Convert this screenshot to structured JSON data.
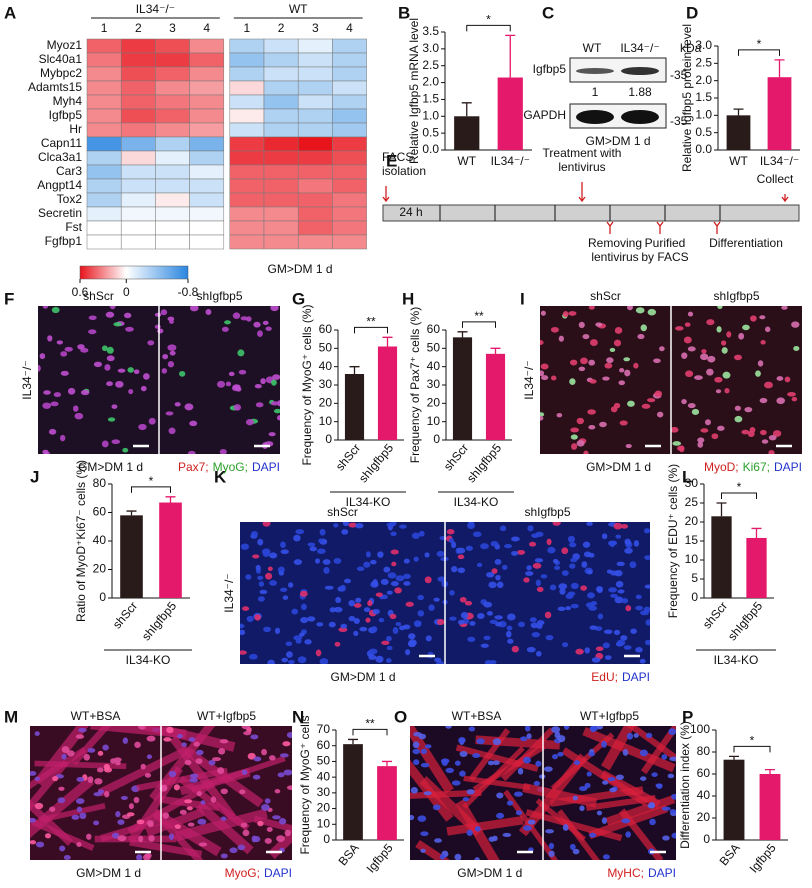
{
  "panel_letters": [
    "A",
    "B",
    "C",
    "D",
    "E",
    "F",
    "G",
    "H",
    "I",
    "J",
    "K",
    "L",
    "M",
    "N",
    "O",
    "P"
  ],
  "heatmap": {
    "groups": [
      "IL34⁻/⁻",
      "WT"
    ],
    "columns": [
      1,
      2,
      3,
      4,
      1,
      2,
      3,
      4
    ],
    "genes": [
      "Myoz1",
      "Slc40a1",
      "Mybpc2",
      "Adamts15",
      "Myh4",
      "Igfbp5",
      "Hr",
      "Capn11",
      "Clca3a1",
      "Car3",
      "Angpt14",
      "Tox2",
      "Secretin",
      "Fst",
      "Fgfbp1"
    ],
    "highlight_index": 5,
    "highlight_color": "#d0201f",
    "values": [
      [
        0.4,
        0.5,
        0.45,
        0.3,
        -0.3,
        -0.2,
        -0.1,
        -0.3
      ],
      [
        0.35,
        0.5,
        0.5,
        0.4,
        -0.4,
        -0.3,
        -0.2,
        -0.3
      ],
      [
        0.3,
        0.45,
        0.4,
        0.3,
        -0.3,
        -0.2,
        -0.2,
        -0.3
      ],
      [
        0.3,
        0.4,
        0.3,
        0.25,
        0.1,
        -0.3,
        -0.3,
        -0.2
      ],
      [
        0.3,
        0.4,
        0.35,
        0.3,
        -0.2,
        -0.4,
        -0.2,
        -0.3
      ],
      [
        0.3,
        0.45,
        0.4,
        0.3,
        0.05,
        -0.3,
        -0.3,
        -0.4
      ],
      [
        0.3,
        0.35,
        0.3,
        0.25,
        -0.2,
        -0.3,
        -0.3,
        -0.35
      ],
      [
        -0.7,
        -0.5,
        -0.3,
        -0.5,
        0.5,
        0.55,
        0.6,
        0.5
      ],
      [
        -0.3,
        0.1,
        -0.1,
        -0.3,
        0.5,
        0.5,
        0.5,
        0.45
      ],
      [
        -0.4,
        -0.2,
        -0.2,
        -0.1,
        0.4,
        0.4,
        0.4,
        0.4
      ],
      [
        -0.3,
        -0.2,
        -0.2,
        -0.2,
        0.4,
        0.4,
        0.35,
        0.4
      ],
      [
        -0.3,
        -0.1,
        0.05,
        -0.2,
        0.4,
        0.4,
        0.4,
        0.35
      ],
      [
        -0.1,
        -0.05,
        -0.05,
        -0.05,
        0.3,
        0.3,
        0.4,
        0.35
      ],
      [
        0,
        0,
        0,
        0,
        0.3,
        0.3,
        0.4,
        0.35
      ],
      [
        0,
        0,
        0,
        0,
        0.3,
        0.3,
        0.3,
        0.3
      ]
    ],
    "scale": {
      "min": -0.8,
      "max": 0.6,
      "ticks": [
        0.6,
        0,
        -0.8
      ]
    },
    "high_color": "#e8141c",
    "low_color": "#2a86e0",
    "condition": "GM>DM 1 d"
  },
  "blot": {
    "lanes": [
      "WT",
      "IL34⁻/⁻"
    ],
    "unit": "kDa",
    "rows": [
      {
        "label": "Igfbp5",
        "marker": "-35"
      },
      {
        "label": "GAPDH",
        "marker": "-35"
      }
    ],
    "quantification": [
      1,
      1.88
    ],
    "condition": "GM>DM 1 d"
  },
  "timeline": {
    "top_labels": [
      [
        "FACS",
        "isolation"
      ],
      [
        "Treatment with",
        "lentivirus"
      ],
      [
        "Collect"
      ]
    ],
    "bar_label": "24 h",
    "bottom_labels": [
      [
        "Removing",
        "lentivirus"
      ],
      [
        "Purified",
        "by FACS"
      ],
      [
        "Differentiation"
      ]
    ],
    "arrow_color": "#d0201f"
  },
  "images": [
    {
      "columns": [
        "shScr",
        "shIgfbp5"
      ],
      "row_label": "IL34⁻/⁻",
      "condition": "GM>DM 1 d",
      "stains": [
        {
          "text": "Pax7;",
          "color": "#d0201f"
        },
        {
          "text": "MyoG;",
          "color": "#2ca02c"
        },
        {
          "text": "DAPI",
          "color": "#2233cc"
        }
      ]
    },
    {
      "columns": [
        "shScr",
        "shIgfbp5"
      ],
      "row_label": "IL34⁻/⁻",
      "condition": "GM>DM 1 d",
      "stains": [
        {
          "text": "MyoD;",
          "color": "#d0201f"
        },
        {
          "text": "Ki67;",
          "color": "#2ca02c"
        },
        {
          "text": "DAPI",
          "color": "#2233cc"
        }
      ]
    },
    {
      "columns": [
        "shScr",
        "shIgfbp5"
      ],
      "row_label": "IL34⁻/⁻",
      "condition": "GM>DM 1 d",
      "stains": [
        {
          "text": "EdU;",
          "color": "#d0201f"
        },
        {
          "text": "DAPI",
          "color": "#2233cc"
        }
      ]
    },
    {
      "columns": [
        "WT+BSA",
        "WT+Igfbp5"
      ],
      "condition": "GM>DM 1 d",
      "stains": [
        {
          "text": "MyoG;",
          "color": "#d0201f"
        },
        {
          "text": "DAPI",
          "color": "#2233cc"
        }
      ]
    },
    {
      "columns": [
        "WT+BSA",
        "WT+Igfbp5"
      ],
      "condition": "GM>DM 1 d",
      "stains": [
        {
          "text": "MyHC;",
          "color": "#d0201f"
        },
        {
          "text": "DAPI",
          "color": "#2233cc"
        }
      ]
    }
  ],
  "chart_data": [
    {
      "type": "bar",
      "ylabel": "Relative Igfbp5 mRNA level",
      "categories": [
        "WT",
        "IL34⁻/⁻"
      ],
      "values": [
        1,
        2.15
      ],
      "errors": [
        0.4,
        1.25
      ],
      "colors": [
        "#2a1b1b",
        "#e5196b"
      ],
      "ylim": [
        0,
        3.5
      ],
      "yticks": [
        {
          "value": 0,
          "label": "0.0"
        },
        0.5,
        {
          "value": 1,
          "label": "1.0"
        },
        1.5,
        {
          "value": 2,
          "label": "2.0"
        },
        2.5,
        {
          "value": 3,
          "label": "3.0"
        },
        3.5
      ],
      "significance": "*"
    },
    {
      "type": "bar",
      "ylabel": "Relative Igfbp5 protein level",
      "categories": [
        "WT",
        "IL34⁻/⁻"
      ],
      "values": [
        1,
        2.1
      ],
      "errors": [
        0.18,
        0.5
      ],
      "colors": [
        "#2a1b1b",
        "#e5196b"
      ],
      "ylim": [
        0,
        3
      ],
      "yticks": [
        {
          "value": 0,
          "label": "0.0"
        },
        0.5,
        {
          "value": 1,
          "label": "1.0"
        },
        1.5,
        {
          "value": 2,
          "label": "2.0"
        },
        2.5,
        {
          "value": 3,
          "label": "3.0"
        }
      ],
      "significance": "*"
    },
    {
      "type": "bar",
      "ylabel": "Frequency of MyoG⁺ cells (%)",
      "categories": [
        "shScr",
        "shIgfbp5"
      ],
      "values": [
        36,
        51
      ],
      "errors": [
        4,
        5
      ],
      "colors": [
        "#2a1b1b",
        "#e5196b"
      ],
      "ylim": [
        0,
        60
      ],
      "yticks": [
        0,
        10,
        20,
        30,
        40,
        50,
        60
      ],
      "significance": "**",
      "group_label": "IL34-KO"
    },
    {
      "type": "bar",
      "ylabel": "Frequency of Pax7⁺ cells (%)",
      "categories": [
        "shScr",
        "shIgfbp5"
      ],
      "values": [
        56,
        47
      ],
      "errors": [
        3,
        3
      ],
      "colors": [
        "#2a1b1b",
        "#e5196b"
      ],
      "ylim": [
        0,
        60
      ],
      "yticks": [
        0,
        10,
        20,
        30,
        40,
        50,
        60
      ],
      "significance": "**",
      "group_label": "IL34-KO"
    },
    {
      "type": "bar",
      "ylabel": "Ratio of MyoD⁺Ki67⁻ cells (%)",
      "categories": [
        "shScr",
        "shIgfbp5"
      ],
      "values": [
        58,
        67
      ],
      "errors": [
        3,
        4
      ],
      "colors": [
        "#2a1b1b",
        "#e5196b"
      ],
      "ylim": [
        0,
        80
      ],
      "yticks": [
        0,
        20,
        40,
        60,
        80
      ],
      "significance": "*",
      "group_label": "IL34-KO"
    },
    {
      "type": "bar",
      "ylabel": "Frequency of EDU⁺ cells (%)",
      "categories": [
        "shScr",
        "shIgfbp5"
      ],
      "values": [
        21.5,
        15.8
      ],
      "errors": [
        3.5,
        2.5
      ],
      "colors": [
        "#2a1b1b",
        "#e5196b"
      ],
      "ylim": [
        0,
        30
      ],
      "yticks": [
        0,
        5,
        10,
        15,
        20,
        25,
        30
      ],
      "significance": "*",
      "group_label": "IL34-KO"
    },
    {
      "type": "bar",
      "ylabel": "Frequency of MyoG⁺ cells",
      "categories": [
        "BSA",
        "Igfbp5"
      ],
      "values": [
        61,
        47
      ],
      "errors": [
        3,
        3
      ],
      "colors": [
        "#2a1b1b",
        "#e5196b"
      ],
      "ylim": [
        0,
        70
      ],
      "yticks": [
        0,
        10,
        20,
        30,
        40,
        50,
        60,
        70
      ],
      "significance": "**"
    },
    {
      "type": "bar",
      "ylabel": "Differentiation index (%)",
      "categories": [
        "BSA",
        "Igfbp5"
      ],
      "values": [
        73,
        60
      ],
      "errors": [
        3,
        4
      ],
      "colors": [
        "#2a1b1b",
        "#e5196b"
      ],
      "ylim": [
        0,
        100
      ],
      "yticks": [
        0,
        20,
        40,
        60,
        80,
        100
      ],
      "significance": "*"
    }
  ]
}
